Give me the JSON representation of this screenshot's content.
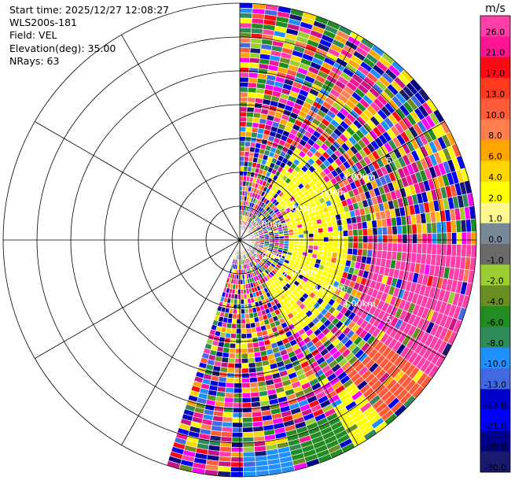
{
  "info": {
    "start_time": "Start time: 2025/12/27 12:08:27",
    "instrument": "WLS200s-181",
    "field": "Field: VEL",
    "elevation": "Elevation(deg): 35.00",
    "nrays": "NRays: 63"
  },
  "colorbar": {
    "unit": "m/s",
    "levels": [
      {
        "label": "26.0",
        "color": "#ff3fa8"
      },
      {
        "label": "21.0",
        "color": "#ff1493"
      },
      {
        "label": "17.0",
        "color": "#ff0a14"
      },
      {
        "label": "13.0",
        "color": "#ff3a1e"
      },
      {
        "label": "10.0",
        "color": "#ff5a3a"
      },
      {
        "label": "8.0",
        "color": "#ff7f50"
      },
      {
        "label": "6.0",
        "color": "#ffa500"
      },
      {
        "label": "4.0",
        "color": "#ffd700"
      },
      {
        "label": "2.0",
        "color": "#ffff00"
      },
      {
        "label": "1.0",
        "color": "#fff890"
      },
      {
        "label": "0.0",
        "color": "#778899"
      },
      {
        "label": "-1.0",
        "color": "#696969"
      },
      {
        "label": "-2.0",
        "color": "#9acd32"
      },
      {
        "label": "-4.0",
        "color": "#6b8e23"
      },
      {
        "label": "-6.0",
        "color": "#228b22"
      },
      {
        "label": "-8.0",
        "color": "#2e8b57"
      },
      {
        "label": "-10.0",
        "color": "#1e90ff"
      },
      {
        "label": "-13.0",
        "color": "#4169e1"
      },
      {
        "label": "-17.0",
        "color": "#0000cd"
      },
      {
        "label": "-21.0",
        "color": "#0000ff"
      },
      {
        "label": "-26.0",
        "color": "#00008b"
      },
      {
        "label": "-30.0",
        "color": "#191970"
      }
    ]
  },
  "chart_data": {
    "type": "heatmap",
    "projection": "polar PPI",
    "field": "VEL",
    "units": "m/s",
    "elevation_deg": 35.0,
    "nrays": 63,
    "azimuth_coverage_deg": [
      0,
      198
    ],
    "range_rings": [
      {
        "range_km": 1.0,
        "label": "1.00km"
      },
      {
        "range_km": 2.0,
        "label": "2.00km"
      },
      {
        "range_km": 3.0,
        "label": "3.00km"
      },
      {
        "range_km": 4.0,
        "label": "4.00km"
      },
      {
        "range_km": 5.0,
        "label": "5.00km"
      },
      {
        "range_km": 6.0,
        "label": ""
      },
      {
        "range_km": 7.0,
        "label": ""
      }
    ],
    "ring_label_bearings_deg": [
      62,
      118
    ],
    "ring_labels_drawn": [
      "1.00km",
      "2.00km",
      "3.00km",
      "4.00km",
      "5"
    ],
    "radial_lines_deg": [
      0,
      30,
      60,
      90,
      120,
      150,
      180,
      210,
      240,
      270,
      300,
      330
    ],
    "max_range_km": 7.0,
    "colorbar_range": [
      -30.0,
      26.0
    ],
    "features": [
      {
        "description": "coherent positive velocity sector",
        "azimuth_deg": [
          92,
          126
        ],
        "range_km": [
          4.0,
          7.0
        ],
        "value_approx": 26.0
      },
      {
        "description": "coherent positive velocity sector",
        "azimuth_deg": [
          126,
          142
        ],
        "range_km": [
          5.0,
          7.0
        ],
        "value_approx": 10.0
      },
      {
        "description": "yellow band",
        "azimuth_deg": [
          140,
          152
        ],
        "range_km": [
          5.4,
          7.0
        ],
        "value_approx": 2.0
      },
      {
        "description": "green negative band",
        "azimuth_deg": [
          152,
          168
        ],
        "range_km": [
          5.8,
          7.0
        ],
        "value_approx": -6.0
      },
      {
        "description": "blue negative band",
        "azimuth_deg": [
          168,
          180
        ],
        "range_km": [
          6.2,
          7.0
        ],
        "value_approx": -10.0
      },
      {
        "description": "yellow near-field band",
        "azimuth_deg": [
          30,
          150
        ],
        "range_km": [
          1.5,
          3.2
        ],
        "value_approx": 2.0
      }
    ]
  }
}
